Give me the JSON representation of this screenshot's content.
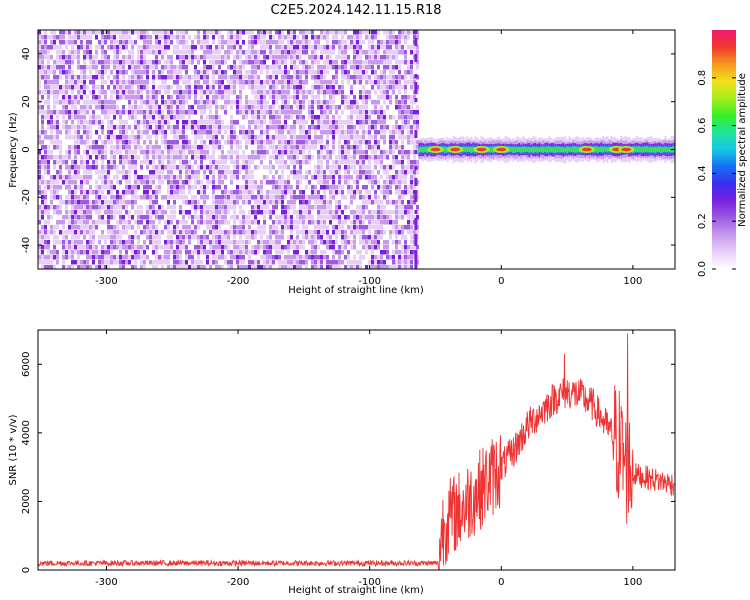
{
  "title": "C2E5.2024.142.11.15.R18",
  "chart_data": [
    {
      "type": "heatmap",
      "xlabel": "Height of straight line (km)",
      "ylabel": "Frequency (Hz)",
      "xlim": [
        -352,
        132
      ],
      "ylim": [
        -50,
        50
      ],
      "x_ticks": [
        -300,
        -200,
        -100,
        0,
        100
      ],
      "y_ticks": [
        -40,
        -20,
        0,
        20,
        40
      ],
      "noise_region_x": [
        -352,
        -63
      ],
      "signal_ridge_freq_hz": 0,
      "signal_ridge_x": [
        -63,
        132
      ],
      "hotspots_x": [
        -50,
        -35,
        -15,
        0,
        65,
        88,
        95
      ],
      "colorbar": {
        "label": "Normalized spectral amplitude",
        "ticks": [
          0.0,
          0.2,
          0.4,
          0.6,
          0.8
        ],
        "range": [
          0,
          1
        ],
        "colormap": [
          "#ffffff",
          "#e7cff7",
          "#c79aee",
          "#9c5be0",
          "#7a1fe0",
          "#3a2ef0",
          "#1670f5",
          "#16c6e6",
          "#1fe59a",
          "#37ef24",
          "#a6ee1d",
          "#f4e21a",
          "#f6961f",
          "#f2392f",
          "#ee1a70"
        ]
      },
      "grid": false
    },
    {
      "type": "line",
      "xlabel": "Height of straight line (km)",
      "ylabel": "SNR (10 * v/v)",
      "xlim": [
        -352,
        132
      ],
      "ylim": [
        0,
        7000
      ],
      "x_ticks": [
        -300,
        -200,
        -100,
        0,
        100
      ],
      "y_ticks": [
        0,
        2000,
        4000,
        6000
      ],
      "line_color": "#ee3333",
      "series": [
        {
          "x": [
            -352,
            -300,
            -250,
            -200,
            -150,
            -100,
            -60,
            -48,
            -45,
            -40,
            -30,
            -20,
            -10,
            0,
            10,
            20,
            30,
            40,
            50,
            60,
            70,
            80,
            90,
            95,
            98,
            100,
            110,
            120,
            132
          ],
          "values": [
            200,
            200,
            200,
            200,
            200,
            200,
            200,
            200,
            1200,
            1500,
            1800,
            2200,
            2600,
            3000,
            3500,
            4200,
            4600,
            5000,
            5200,
            5100,
            4800,
            4200,
            3600,
            3000,
            2900,
            2800,
            2700,
            2600,
            2500
          ]
        }
      ],
      "peak_annotations": [
        {
          "x": 48,
          "y": 6300
        },
        {
          "x": 96,
          "y": 6900
        }
      ],
      "grid": false
    }
  ]
}
